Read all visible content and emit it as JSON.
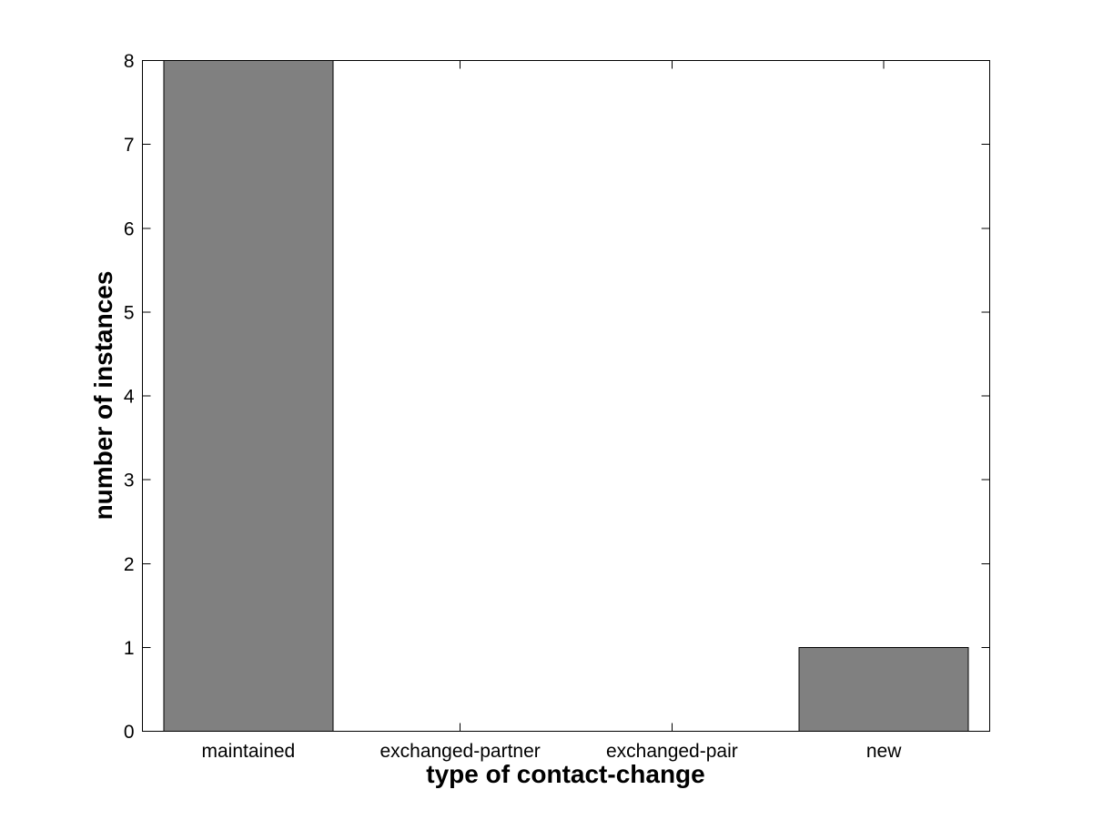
{
  "figure": {
    "background_color": "#ffffff"
  },
  "chart_data": {
    "type": "bar",
    "categories": [
      "maintained",
      "exchanged-partner",
      "exchanged-pair",
      "new"
    ],
    "values": [
      8,
      0,
      0,
      1
    ],
    "title": "",
    "xlabel": "type of contact-change",
    "ylabel": "number of instances",
    "ylim": [
      0,
      8
    ],
    "yticks": [
      0,
      1,
      2,
      3,
      4,
      5,
      6,
      7,
      8
    ],
    "bar_width_fraction": 0.8,
    "bar_color": "#808080",
    "bar_edge_color": "#000000",
    "axis_color": "#000000",
    "tick_direction": "in",
    "box": true,
    "grid": false,
    "legend": null
  }
}
